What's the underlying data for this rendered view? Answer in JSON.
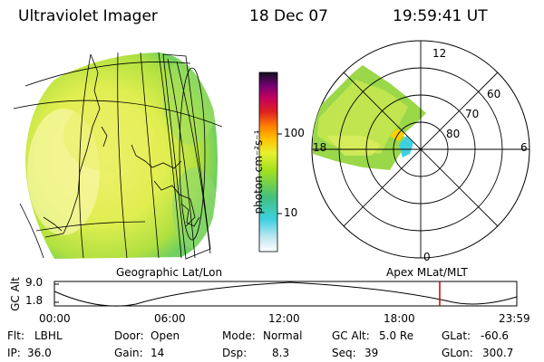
{
  "header": {
    "title": "Ultraviolet Imager",
    "date": "18 Dec 07",
    "time": "19:59:41 UT"
  },
  "colorbar": {
    "unit_label": "photon cm⁻²s⁻¹",
    "ticks": [
      "100",
      "10"
    ]
  },
  "polar": {
    "lat_labels": [
      "80",
      "70",
      "60"
    ],
    "mlt_labels": {
      "top": "12",
      "left": "18",
      "right": "6",
      "bottom": "0"
    }
  },
  "projections": {
    "left": "Geographic Lat/Lon",
    "right": "Apex MLat/MLT"
  },
  "altitude_plot": {
    "y_label": "GC Alt",
    "y_ticks": [
      "9.0",
      "1.8"
    ],
    "x_ticks": [
      "00:00",
      "06:00",
      "12:00",
      "18:00",
      "23:59"
    ],
    "current_time_fraction": 0.8333,
    "marker_color": "#d00000"
  },
  "info": {
    "filter": {
      "label": "Flt:",
      "value": "LBHL"
    },
    "ip": {
      "label": "IP:",
      "value": "36.0"
    },
    "door": {
      "label": "Door:",
      "value": "Open"
    },
    "gain": {
      "label": "Gain:",
      "value": "14"
    },
    "mode": {
      "label": "Mode:",
      "value": "Normal"
    },
    "dsp": {
      "label": "Dsp:",
      "value": "8.3"
    },
    "gcalt": {
      "label": "GC Alt:",
      "value": "5.0 Re"
    },
    "seq": {
      "label": "Seq:",
      "value": "39"
    },
    "glat": {
      "label": "GLat:",
      "value": "-60.6"
    },
    "glon": {
      "label": "GLon:",
      "value": "300.7"
    }
  }
}
